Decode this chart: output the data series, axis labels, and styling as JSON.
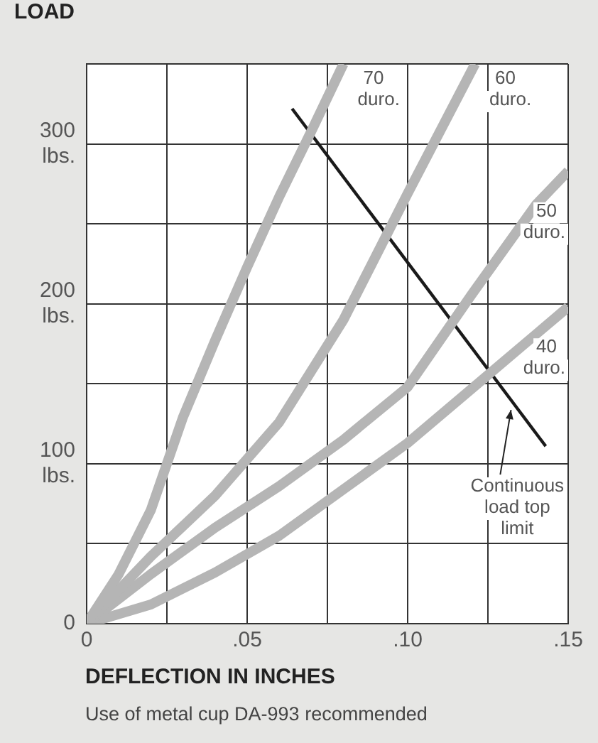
{
  "chart_data": {
    "type": "line",
    "ylabel": "LOAD",
    "xlabel": "DEFLECTION IN INCHES",
    "annotations": [
      "Use of metal cup DA-993 recommended"
    ],
    "xlim": [
      0,
      0.15
    ],
    "xticks": [
      0,
      {
        "value": 0.025,
        "label": null
      },
      {
        "value": 0.05,
        "label": ".05"
      },
      {
        "value": 0.075,
        "label": null
      },
      {
        "value": 0.1,
        "label": ".10"
      },
      {
        "value": 0.125,
        "label": null
      },
      {
        "value": 0.15,
        "label": ".15"
      }
    ],
    "ylim": [
      0,
      350
    ],
    "yticks": [
      0,
      {
        "value": 50,
        "label": null
      },
      {
        "value": 100,
        "label": "100 lbs."
      },
      {
        "value": 150,
        "label": null
      },
      {
        "value": 200,
        "label": "200 lbs."
      },
      {
        "value": 250,
        "label": null
      },
      {
        "value": 300,
        "label": "300 lbs."
      },
      {
        "value": 350,
        "label": null
      }
    ],
    "grid": true,
    "legend": false,
    "marker": "none",
    "series": [
      {
        "name": "70 duro.",
        "color": "#b5b5b5",
        "x": [
          0,
          0.01,
          0.02,
          0.03,
          0.04,
          0.05,
          0.06,
          0.07,
          0.08
        ],
        "values": [
          0,
          31,
          71,
          129,
          177,
          223,
          267,
          308,
          350
        ]
      },
      {
        "name": "60 duro.",
        "color": "#b5b5b5",
        "x": [
          0,
          0.02,
          0.04,
          0.06,
          0.08,
          0.1,
          0.121
        ],
        "values": [
          0,
          42,
          80,
          126,
          190,
          269,
          350
        ]
      },
      {
        "name": "50 duro.",
        "color": "#b5b5b5",
        "x": [
          0,
          0.02,
          0.04,
          0.06,
          0.08,
          0.1,
          0.12,
          0.14,
          0.15
        ],
        "values": [
          0,
          31,
          60,
          86,
          115,
          148,
          206,
          262,
          283
        ]
      },
      {
        "name": "40 duro.",
        "color": "#b5b5b5",
        "x": [
          0,
          0.02,
          0.04,
          0.06,
          0.08,
          0.1,
          0.12,
          0.14,
          0.15
        ],
        "values": [
          0,
          12,
          32,
          55,
          84,
          113,
          147,
          181,
          198
        ]
      },
      {
        "name": "Continuous load top limit",
        "color": "#1a1a1a",
        "x": [
          0.064,
          0.143
        ],
        "values": [
          322,
          111
        ]
      }
    ]
  }
}
